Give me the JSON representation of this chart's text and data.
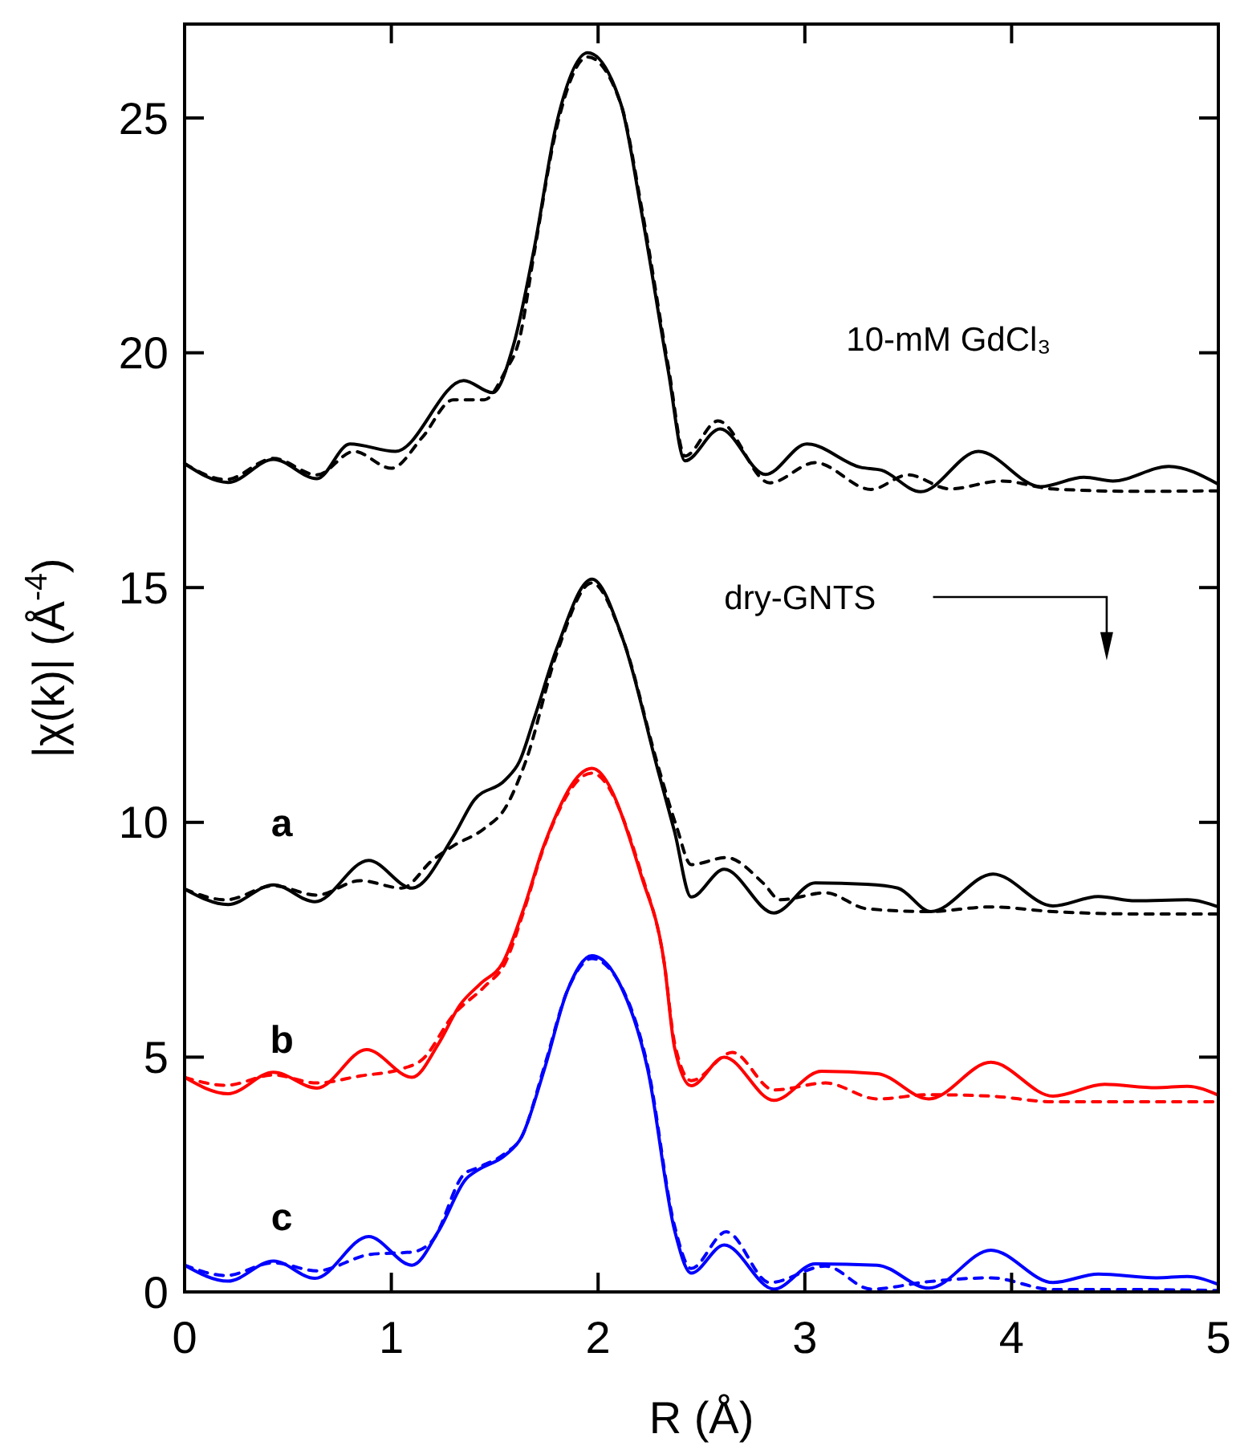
{
  "chart_data": {
    "type": "line",
    "xlabel": "R (Å)",
    "ylabel": "|χ(k)| (Å$^{-4}$)",
    "xlim": [
      0,
      5
    ],
    "ylim": [
      0,
      27
    ],
    "xticks": [
      0,
      1,
      2,
      3,
      4,
      5
    ],
    "yticks": [
      0,
      5,
      10,
      15,
      20,
      25
    ],
    "grid": false,
    "marker": "none",
    "annotations": [
      "dry-GNTS"
    ],
    "series": [
      {
        "name": "10-mM GdCl₃",
        "color": "#000000",
        "line_style": "solid",
        "x": [
          0,
          0.21,
          0.43,
          0.64,
          0.8,
          1.02,
          1.35,
          1.49,
          1.59,
          1.69,
          1.8,
          1.95,
          2.11,
          2.21,
          2.34,
          2.42,
          2.59,
          2.81,
          3.01,
          3.27,
          3.37,
          3.56,
          3.84,
          4.14,
          4.35,
          4.49,
          4.76,
          5
        ],
        "values": [
          17.64,
          17.24,
          17.73,
          17.32,
          18.06,
          17.9,
          19.41,
          19.15,
          20.15,
          22.2,
          24.9,
          26.39,
          25.3,
          23.0,
          19.6,
          17.7,
          18.38,
          17.41,
          18.06,
          17.56,
          17.5,
          17.04,
          17.9,
          17.15,
          17.35,
          17.27,
          17.58,
          17.2
        ]
      },
      {
        "color": "#000000",
        "line_style": "dashed",
        "x": [
          0,
          0.2,
          0.43,
          0.64,
          0.82,
          1.0,
          1.15,
          1.3,
          1.45,
          1.55,
          1.62,
          1.69,
          1.8,
          1.95,
          2.11,
          2.21,
          2.34,
          2.42,
          2.58,
          2.83,
          3.05,
          3.32,
          3.5,
          3.7,
          3.95,
          4.2,
          4.6,
          5
        ],
        "values": [
          17.64,
          17.3,
          17.75,
          17.4,
          17.9,
          17.54,
          18.2,
          19.0,
          19.0,
          19.6,
          20.3,
          22.1,
          24.8,
          26.3,
          25.3,
          23.1,
          19.7,
          17.8,
          18.55,
          17.23,
          17.66,
          17.09,
          17.4,
          17.1,
          17.27,
          17.1,
          17.05,
          17.06
        ]
      },
      {
        "name": "a",
        "color": "#000000",
        "line_style": "solid",
        "x": [
          0,
          0.21,
          0.43,
          0.63,
          0.89,
          1.1,
          1.3,
          1.4,
          1.55,
          1.62,
          1.69,
          1.8,
          1.97,
          2.12,
          2.29,
          2.37,
          2.45,
          2.61,
          2.85,
          3.05,
          3.3,
          3.45,
          3.61,
          3.91,
          4.2,
          4.42,
          4.6,
          4.85,
          5
        ],
        "values": [
          8.58,
          8.25,
          8.67,
          8.31,
          9.19,
          8.6,
          9.7,
          10.47,
          10.9,
          11.3,
          12.2,
          13.7,
          15.18,
          13.9,
          11.1,
          9.8,
          8.41,
          9.0,
          8.07,
          8.71,
          8.68,
          8.6,
          8.1,
          8.9,
          8.22,
          8.42,
          8.33,
          8.35,
          8.2
        ]
      },
      {
        "color": "#000000",
        "line_style": "dashed",
        "x": [
          0,
          0.2,
          0.43,
          0.64,
          0.85,
          1.05,
          1.2,
          1.3,
          1.45,
          1.55,
          1.65,
          1.8,
          1.97,
          2.12,
          2.29,
          2.38,
          2.45,
          2.62,
          2.8,
          2.88,
          3.1,
          3.3,
          3.6,
          3.9,
          4.2,
          4.6,
          5
        ],
        "values": [
          8.58,
          8.35,
          8.65,
          8.45,
          8.76,
          8.6,
          9.2,
          9.5,
          9.87,
          10.3,
          11.3,
          13.6,
          15.1,
          13.9,
          11.2,
          9.9,
          9.1,
          9.25,
          8.7,
          8.35,
          8.5,
          8.16,
          8.1,
          8.2,
          8.1,
          8.05,
          8.05
        ]
      },
      {
        "name": "b",
        "color": "#ff0000",
        "line_style": "solid",
        "x": [
          0,
          0.21,
          0.43,
          0.64,
          0.88,
          1.1,
          1.23,
          1.33,
          1.43,
          1.54,
          1.64,
          1.74,
          1.97,
          2.21,
          2.32,
          2.37,
          2.45,
          2.61,
          2.85,
          3.08,
          3.35,
          3.6,
          3.9,
          4.2,
          4.45,
          4.7,
          4.85,
          5
        ],
        "values": [
          4.57,
          4.22,
          4.68,
          4.34,
          5.16,
          4.57,
          5.3,
          6.1,
          6.56,
          7.02,
          8.16,
          9.53,
          11.15,
          8.85,
          7.0,
          5.2,
          4.39,
          5.0,
          4.08,
          4.7,
          4.65,
          4.11,
          4.89,
          4.17,
          4.42,
          4.35,
          4.38,
          4.19
        ]
      },
      {
        "color": "#ff0000",
        "line_style": "dashed",
        "x": [
          0,
          0.2,
          0.43,
          0.64,
          0.85,
          1.05,
          1.15,
          1.3,
          1.45,
          1.55,
          1.64,
          1.74,
          1.97,
          2.21,
          2.32,
          2.37,
          2.45,
          2.65,
          2.85,
          3.1,
          3.35,
          3.6,
          3.9,
          4.2,
          4.6,
          5
        ],
        "values": [
          4.57,
          4.4,
          4.62,
          4.45,
          4.6,
          4.75,
          4.95,
          5.9,
          6.5,
          7.0,
          8.1,
          9.5,
          11.05,
          8.9,
          7.0,
          5.3,
          4.5,
          5.1,
          4.3,
          4.45,
          4.11,
          4.2,
          4.17,
          4.05,
          4.05,
          4.05
        ]
      },
      {
        "name": "c",
        "color": "#0000ff",
        "line_style": "solid",
        "x": [
          0,
          0.21,
          0.43,
          0.63,
          0.89,
          1.1,
          1.23,
          1.36,
          1.42,
          1.55,
          1.63,
          1.74,
          1.85,
          1.97,
          2.1,
          2.24,
          2.37,
          2.45,
          2.61,
          2.85,
          3.05,
          3.35,
          3.6,
          3.9,
          4.2,
          4.42,
          4.7,
          4.85,
          5
        ],
        "values": [
          0.57,
          0.23,
          0.66,
          0.29,
          1.18,
          0.57,
          1.31,
          2.4,
          2.6,
          2.91,
          3.3,
          4.74,
          6.4,
          7.16,
          6.6,
          4.74,
          1.31,
          0.4,
          1.0,
          0.06,
          0.6,
          0.57,
          0.08,
          0.89,
          0.2,
          0.38,
          0.3,
          0.33,
          0.16
        ]
      },
      {
        "color": "#0000ff",
        "line_style": "dashed",
        "x": [
          0,
          0.2,
          0.43,
          0.64,
          0.9,
          1.1,
          1.2,
          1.35,
          1.42,
          1.55,
          1.63,
          1.74,
          1.85,
          1.97,
          2.1,
          2.24,
          2.37,
          2.45,
          2.62,
          2.83,
          3.1,
          3.32,
          3.6,
          3.9,
          4.2,
          4.6,
          5
        ],
        "values": [
          0.57,
          0.35,
          0.62,
          0.45,
          0.8,
          0.85,
          1.1,
          2.5,
          2.65,
          2.95,
          3.3,
          4.8,
          6.4,
          7.1,
          6.6,
          4.8,
          1.4,
          0.5,
          1.28,
          0.2,
          0.55,
          0.06,
          0.22,
          0.3,
          0.05,
          0.05,
          0.03
        ]
      }
    ]
  }
}
